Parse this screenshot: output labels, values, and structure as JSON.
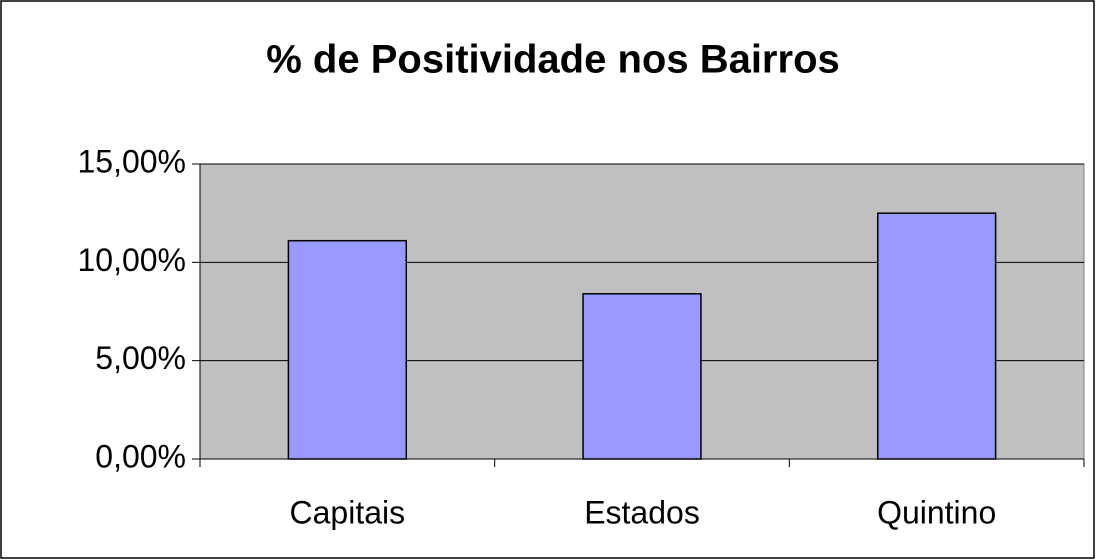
{
  "chart_data": {
    "type": "bar",
    "title": "% de Positividade nos Bairros",
    "categories": [
      "Capitais",
      "Estados",
      "Quintino"
    ],
    "values": [
      11.1,
      8.4,
      12.5
    ],
    "color": "#9999ff",
    "ylim": [
      0,
      15
    ],
    "yticks": [
      {
        "value": 0,
        "label": "0,00%"
      },
      {
        "value": 5,
        "label": "5,00%"
      },
      {
        "value": 10,
        "label": "10,00%"
      },
      {
        "value": 15,
        "label": "15,00%"
      }
    ],
    "grid": true
  }
}
